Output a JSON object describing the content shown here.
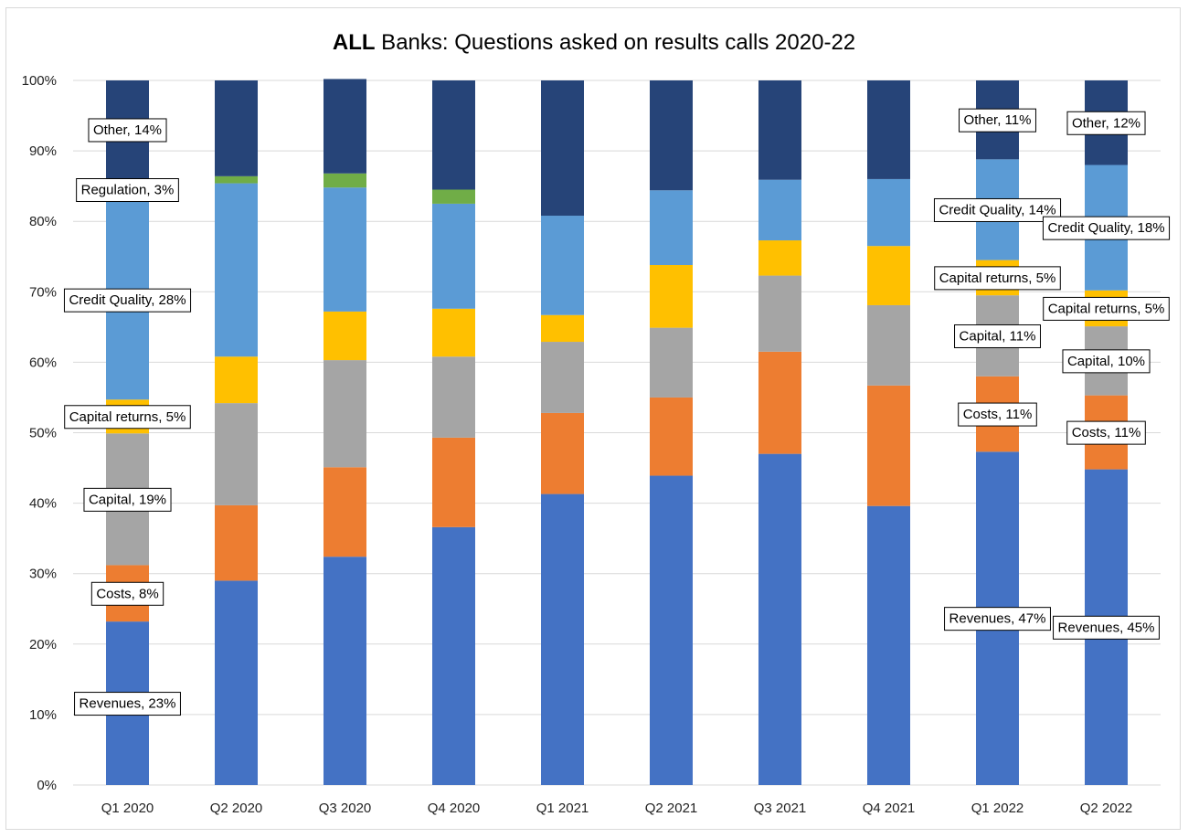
{
  "chart_data": {
    "type": "bar",
    "stacked": true,
    "percent": true,
    "title_bold": "ALL",
    "title_rest": " Banks: Questions asked on results calls 2020-22",
    "categories": [
      "Q1 2020",
      "Q2 2020",
      "Q3 2020",
      "Q4 2020",
      "Q1 2021",
      "Q2 2021",
      "Q3 2021",
      "Q4 2021",
      "Q1 2022",
      "Q2 2022"
    ],
    "ylim": [
      0,
      100
    ],
    "y_ticks": [
      "0%",
      "10%",
      "20%",
      "30%",
      "40%",
      "50%",
      "60%",
      "70%",
      "80%",
      "90%",
      "100%"
    ],
    "grid": true,
    "legend": "none",
    "series": [
      {
        "name": "Revenues",
        "color": "#4472C4",
        "values": [
          23.2,
          29.0,
          32.4,
          36.6,
          41.3,
          43.9,
          47.0,
          39.6,
          47.3,
          44.8
        ]
      },
      {
        "name": "Costs",
        "color": "#ED7D31",
        "values": [
          8.0,
          10.7,
          12.7,
          12.7,
          11.5,
          11.1,
          14.5,
          17.1,
          10.7,
          10.5
        ]
      },
      {
        "name": "Capital",
        "color": "#A5A5A5",
        "values": [
          18.7,
          14.5,
          15.2,
          11.5,
          10.1,
          9.9,
          10.8,
          11.4,
          11.5,
          9.8
        ]
      },
      {
        "name": "Capital returns",
        "color": "#FFC000",
        "values": [
          4.8,
          6.6,
          6.9,
          6.8,
          3.8,
          8.9,
          5.0,
          8.4,
          5.0,
          5.1
        ]
      },
      {
        "name": "Credit Quality",
        "color": "#5B9BD5",
        "values": [
          28.3,
          24.6,
          17.6,
          14.9,
          14.1,
          10.6,
          8.6,
          9.5,
          14.3,
          17.8
        ]
      },
      {
        "name": "Regulation",
        "color": "#70AD47",
        "values": [
          3.0,
          1.0,
          2.0,
          2.0,
          0,
          0,
          0,
          0,
          0,
          0
        ]
      },
      {
        "name": "Other",
        "color": "#264478",
        "values": [
          14.0,
          13.6,
          13.4,
          15.5,
          19.2,
          15.6,
          14.1,
          14.0,
          11.2,
          12.0
        ]
      }
    ],
    "data_labels": [
      {
        "category": "Q1 2020",
        "series": "Other",
        "text": "Other, 14%"
      },
      {
        "category": "Q1 2020",
        "series": "Regulation",
        "text": "Regulation, 3%"
      },
      {
        "category": "Q1 2020",
        "series": "Credit Quality",
        "text": "Credit Quality, 28%"
      },
      {
        "category": "Q1 2020",
        "series": "Capital returns",
        "text": "Capital returns, 5%"
      },
      {
        "category": "Q1 2020",
        "series": "Capital",
        "text": "Capital, 19%"
      },
      {
        "category": "Q1 2020",
        "series": "Costs",
        "text": "Costs, 8%"
      },
      {
        "category": "Q1 2020",
        "series": "Revenues",
        "text": "Revenues, 23%"
      },
      {
        "category": "Q1 2022",
        "series": "Other",
        "text": "Other, 11%"
      },
      {
        "category": "Q1 2022",
        "series": "Credit Quality",
        "text": "Credit Quality, 14%"
      },
      {
        "category": "Q1 2022",
        "series": "Capital returns",
        "text": "Capital returns, 5%"
      },
      {
        "category": "Q1 2022",
        "series": "Capital",
        "text": "Capital, 11%"
      },
      {
        "category": "Q1 2022",
        "series": "Costs",
        "text": "Costs, 11%"
      },
      {
        "category": "Q1 2022",
        "series": "Revenues",
        "text": "Revenues, 47%"
      },
      {
        "category": "Q2 2022",
        "series": "Other",
        "text": "Other, 12%"
      },
      {
        "category": "Q2 2022",
        "series": "Credit Quality",
        "text": "Credit Quality, 18%"
      },
      {
        "category": "Q2 2022",
        "series": "Capital returns",
        "text": "Capital returns, 5%"
      },
      {
        "category": "Q2 2022",
        "series": "Capital",
        "text": "Capital, 10%"
      },
      {
        "category": "Q2 2022",
        "series": "Costs",
        "text": "Costs, 11%"
      },
      {
        "category": "Q2 2022",
        "series": "Revenues",
        "text": "Revenues, 45%"
      }
    ]
  }
}
